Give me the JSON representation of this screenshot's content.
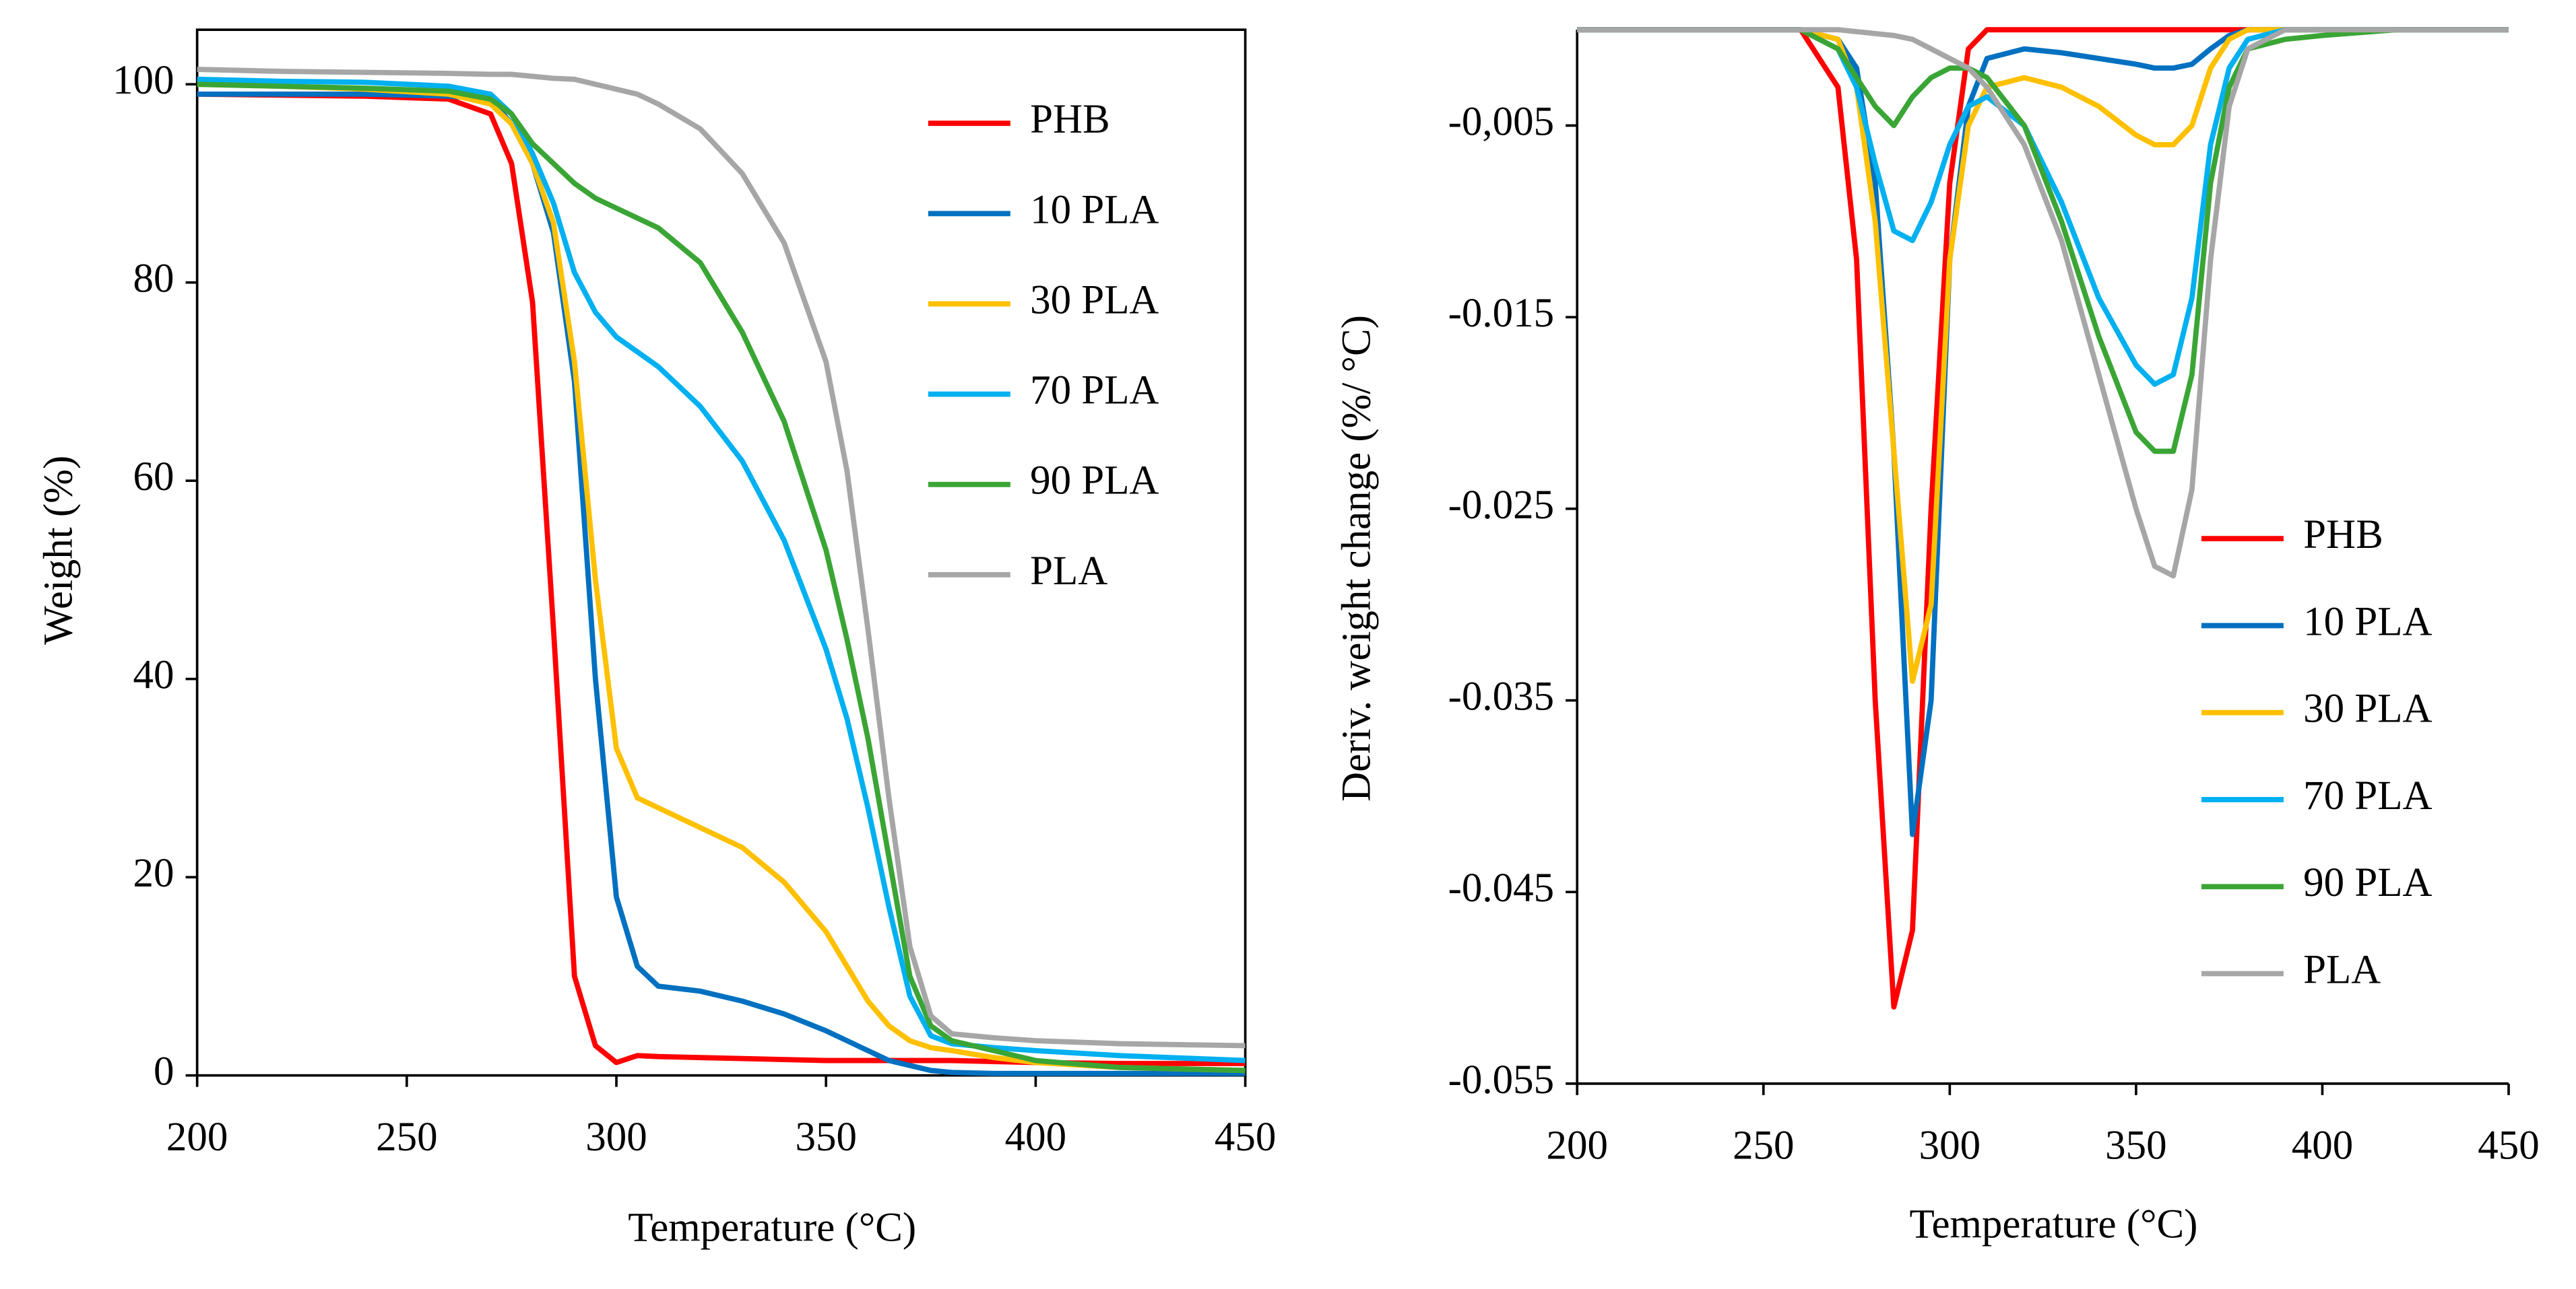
{
  "chart_data": [
    {
      "type": "line",
      "xlabel": "Temperature (°C)",
      "ylabel": "Weight (%)",
      "x": [
        200,
        220,
        240,
        260,
        270,
        275,
        280,
        285,
        290,
        295,
        300,
        305,
        310,
        320,
        330,
        340,
        350,
        355,
        360,
        365,
        370,
        375,
        380,
        390,
        400,
        420,
        450
      ],
      "xlim": [
        200,
        450
      ],
      "xticks": [
        200,
        250,
        300,
        350,
        400,
        450
      ],
      "ylim": [
        0,
        105.5
      ],
      "yticks": [
        0,
        20,
        40,
        60,
        80,
        100
      ],
      "series": [
        {
          "name": "PHB",
          "color": "#ff0000",
          "values": [
            99,
            98.9,
            98.8,
            98.5,
            97,
            92,
            78,
            45,
            10,
            3,
            1.3,
            2,
            1.9,
            1.8,
            1.7,
            1.6,
            1.5,
            1.5,
            1.5,
            1.5,
            1.5,
            1.5,
            1.5,
            1.4,
            1.3,
            1.2,
            1.2
          ]
        },
        {
          "name": "10 PLA",
          "color": "#0070c0",
          "values": [
            99,
            99,
            99,
            98.8,
            98.5,
            96,
            92,
            85,
            70,
            40,
            18,
            11,
            9,
            8.5,
            7.5,
            6.2,
            4.5,
            3.5,
            2.5,
            1.5,
            1,
            0.5,
            0.3,
            0.2,
            0.2,
            0.2,
            0.2
          ]
        },
        {
          "name": "30 PLA",
          "color": "#ffc000",
          "values": [
            100,
            99.8,
            99.5,
            99,
            98,
            96,
            92,
            86,
            72,
            50,
            33,
            28,
            27,
            25,
            23,
            19.5,
            14.5,
            11,
            7.5,
            5,
            3.5,
            2.8,
            2.5,
            1.8,
            1.3,
            0.8,
            0.5
          ]
        },
        {
          "name": "70 PLA",
          "color": "#00b0f0",
          "values": [
            100.5,
            100.3,
            100.2,
            99.8,
            99,
            97,
            93,
            88,
            81,
            77,
            74.5,
            73,
            71.5,
            67.5,
            62,
            54,
            43,
            36,
            27,
            17,
            8,
            4,
            3.2,
            2.8,
            2.5,
            2,
            1.5
          ]
        },
        {
          "name": "90 PLA",
          "color": "#3aa535",
          "values": [
            100,
            99.8,
            99.6,
            99.3,
            98.5,
            97,
            94,
            92,
            90,
            88.5,
            87.5,
            86.5,
            85.5,
            82,
            75,
            66,
            53,
            44,
            34,
            22,
            10,
            5,
            3.5,
            2.5,
            1.5,
            0.8,
            0.5
          ]
        },
        {
          "name": "PLA",
          "color": "#a6a6a6",
          "values": [
            101.5,
            101.3,
            101.2,
            101.1,
            101,
            101,
            100.8,
            100.6,
            100.5,
            100,
            99.5,
            99,
            98,
            95.5,
            91,
            84,
            72,
            61,
            45,
            28,
            13,
            6,
            4.2,
            3.8,
            3.5,
            3.2,
            3
          ]
        }
      ]
    },
    {
      "type": "line",
      "xlabel": "Temperature (°C)",
      "ylabel": "Deriv. weight change (%/ °C)",
      "x": [
        200,
        220,
        240,
        260,
        270,
        275,
        280,
        285,
        290,
        295,
        300,
        305,
        310,
        320,
        330,
        340,
        350,
        355,
        360,
        365,
        370,
        375,
        380,
        390,
        400,
        420,
        450
      ],
      "xlim": [
        200,
        450
      ],
      "xticks": [
        200,
        250,
        300,
        350,
        400,
        450
      ],
      "ylim": [
        -0.055,
        0
      ],
      "yticks": [
        {
          "value": -0.005,
          "label": "-0,005"
        },
        -0.015,
        -0.025,
        -0.035,
        -0.045,
        -0.055
      ],
      "series": [
        {
          "name": "PHB",
          "color": "#ff0000",
          "values": [
            0,
            0,
            0,
            0,
            -0.003,
            -0.012,
            -0.035,
            -0.051,
            -0.047,
            -0.025,
            -0.008,
            -0.001,
            0,
            0,
            0,
            0,
            0,
            0,
            0,
            0,
            0,
            0,
            0,
            0,
            0,
            0,
            0
          ]
        },
        {
          "name": "10 PLA",
          "color": "#0070c0",
          "values": [
            0,
            0,
            0,
            0,
            -0.0005,
            -0.002,
            -0.008,
            -0.022,
            -0.042,
            -0.035,
            -0.012,
            -0.004,
            -0.0015,
            -0.001,
            -0.0012,
            -0.0015,
            -0.0018,
            -0.002,
            -0.002,
            -0.0018,
            -0.001,
            -0.0003,
            0,
            0,
            0,
            0,
            0
          ]
        },
        {
          "name": "30 PLA",
          "color": "#ffc000",
          "values": [
            0,
            0,
            0,
            0,
            -0.0005,
            -0.003,
            -0.01,
            -0.022,
            -0.034,
            -0.03,
            -0.012,
            -0.005,
            -0.003,
            -0.0025,
            -0.003,
            -0.004,
            -0.0055,
            -0.006,
            -0.006,
            -0.005,
            -0.002,
            -0.0005,
            0,
            0,
            0,
            0,
            0
          ]
        },
        {
          "name": "70 PLA",
          "color": "#00b0f0",
          "values": [
            0,
            0,
            0,
            0,
            -0.001,
            -0.003,
            -0.007,
            -0.0105,
            -0.011,
            -0.009,
            -0.006,
            -0.004,
            -0.0035,
            -0.005,
            -0.009,
            -0.014,
            -0.0175,
            -0.0185,
            -0.018,
            -0.014,
            -0.006,
            -0.002,
            -0.0005,
            0,
            0,
            0,
            0
          ]
        },
        {
          "name": "90 PLA",
          "color": "#3aa535",
          "values": [
            0,
            0,
            0,
            0,
            -0.001,
            -0.0025,
            -0.004,
            -0.005,
            -0.0035,
            -0.0025,
            -0.002,
            -0.002,
            -0.0025,
            -0.005,
            -0.01,
            -0.016,
            -0.021,
            -0.022,
            -0.022,
            -0.018,
            -0.008,
            -0.003,
            -0.001,
            -0.0005,
            -0.0003,
            0,
            0
          ]
        },
        {
          "name": "PLA",
          "color": "#a6a6a6",
          "values": [
            0,
            0,
            0,
            0,
            0,
            -0.0001,
            -0.0002,
            -0.0003,
            -0.0005,
            -0.001,
            -0.0015,
            -0.002,
            -0.003,
            -0.006,
            -0.011,
            -0.018,
            -0.025,
            -0.028,
            -0.0285,
            -0.024,
            -0.012,
            -0.004,
            -0.001,
            0,
            0,
            0,
            0
          ]
        }
      ]
    }
  ]
}
